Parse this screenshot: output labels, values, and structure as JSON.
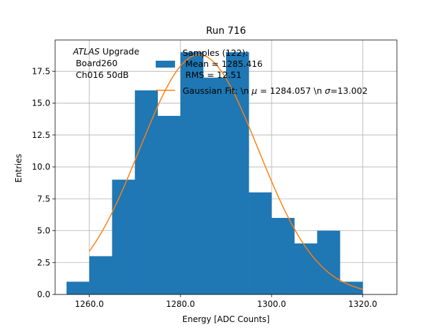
{
  "chart_data": {
    "type": "bar",
    "title": "Run 716",
    "xlabel": "Energy [ADC Counts]",
    "ylabel": "Entries",
    "xlim": [
      1252.5,
      1327.5
    ],
    "ylim": [
      0,
      19.95
    ],
    "xticks": [
      1260,
      1280,
      1300,
      1320
    ],
    "xtick_labels": [
      "1260.0",
      "1280.0",
      "1300.0",
      "1320.0"
    ],
    "yticks": [
      0,
      2.5,
      5,
      7.5,
      10,
      12.5,
      15,
      17.5
    ],
    "ytick_labels": [
      "0.0",
      "2.5",
      "5.0",
      "7.5",
      "10.0",
      "12.5",
      "15.0",
      "17.5"
    ],
    "grid": true,
    "bins": [
      {
        "x0": 1255,
        "x1": 1260,
        "value": 1
      },
      {
        "x0": 1260,
        "x1": 1265,
        "value": 3
      },
      {
        "x0": 1265,
        "x1": 1270,
        "value": 9
      },
      {
        "x0": 1270,
        "x1": 1275,
        "value": 16
      },
      {
        "x0": 1275,
        "x1": 1280,
        "value": 14
      },
      {
        "x0": 1280,
        "x1": 1285,
        "value": 19
      },
      {
        "x0": 1285,
        "x1": 1290,
        "value": 17
      },
      {
        "x0": 1290,
        "x1": 1295,
        "value": 19
      },
      {
        "x0": 1295,
        "x1": 1300,
        "value": 8
      },
      {
        "x0": 1300,
        "x1": 1305,
        "value": 6
      },
      {
        "x0": 1305,
        "x1": 1310,
        "value": 4
      },
      {
        "x0": 1310,
        "x1": 1315,
        "value": 5
      },
      {
        "x0": 1315,
        "x1": 1320,
        "value": 1
      }
    ],
    "fit": {
      "mu": 1284.057,
      "sigma": 13.002,
      "amplitude": 18.8,
      "x_range": [
        1260,
        1320
      ]
    },
    "series": [
      {
        "name": "Samples (122):\n Mean = 1285.416\n RMS = 12.51",
        "color": "#1f77b4"
      },
      {
        "name": "Gaussian Fit: \\n μ = 1284.057 \\n σ=13.002",
        "color": "#ff7f0e"
      }
    ],
    "legend_position": "top-right",
    "annotation": {
      "line1_italic": "ATLAS",
      "line1_rest": " Upgrade",
      "line2": " Board260",
      "line3": " Ch016 50dB"
    },
    "legend_text": {
      "samples_line1": "Samples (122):",
      "samples_line2": " Mean = 1285.416",
      "samples_line3": " RMS = 12.51",
      "fit_prefix": "Gaussian Fit: \\n ",
      "fit_mu_symbol": "μ",
      "fit_mu_value": " = 1284.057 \\n ",
      "fit_sigma_symbol": "σ",
      "fit_sigma_value": "=13.002"
    }
  }
}
